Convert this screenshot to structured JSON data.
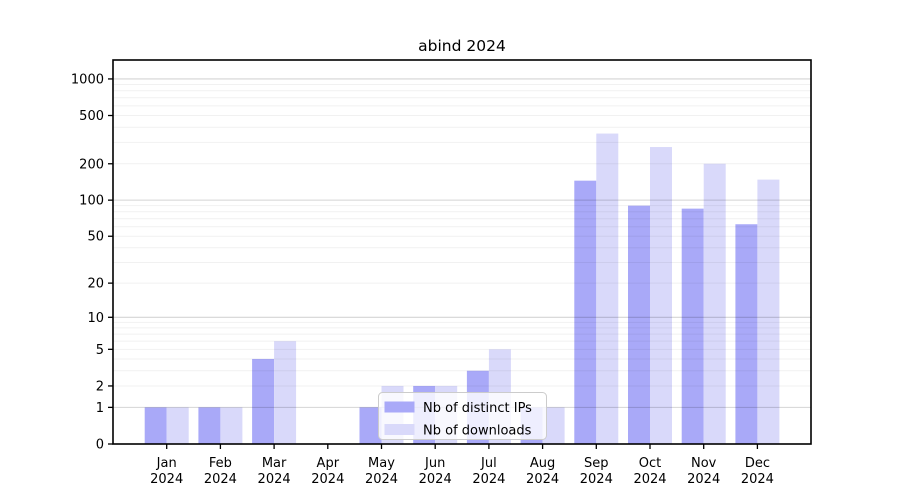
{
  "chart_data": {
    "type": "bar",
    "title": "abind 2024",
    "categories": [
      "Jan 2024",
      "Feb 2024",
      "Mar 2024",
      "Apr 2024",
      "May 2024",
      "Jun 2024",
      "Jul 2024",
      "Aug 2024",
      "Sep 2024",
      "Oct 2024",
      "Nov 2024",
      "Dec 2024"
    ],
    "month_labels": [
      "Jan",
      "Feb",
      "Mar",
      "Apr",
      "May",
      "Jun",
      "Jul",
      "Aug",
      "Sep",
      "Oct",
      "Nov",
      "Dec"
    ],
    "year_label": "2024",
    "series": [
      {
        "name": "Nb of distinct IPs",
        "color": "#a9a9f8",
        "values": [
          1,
          1,
          4,
          0,
          1,
          2,
          3,
          1,
          145,
          90,
          85,
          63
        ]
      },
      {
        "name": "Nb of downloads",
        "color": "#d9d9fa",
        "values": [
          1,
          1,
          6,
          0,
          2,
          2,
          5,
          1,
          355,
          275,
          200,
          148
        ]
      }
    ],
    "yscale": "log1p",
    "yticks": [
      0,
      1,
      2,
      5,
      10,
      20,
      50,
      100,
      200,
      500,
      1000
    ],
    "ylim": [
      0,
      1430
    ],
    "grid": true,
    "legend": {
      "position": "inside-bottom-center"
    }
  },
  "colors": {
    "axis": "#000000",
    "major_grid": "#c9c9c9",
    "minor_grid": "#ececec",
    "legend_border": "#cccccc",
    "background": "#ffffff"
  }
}
